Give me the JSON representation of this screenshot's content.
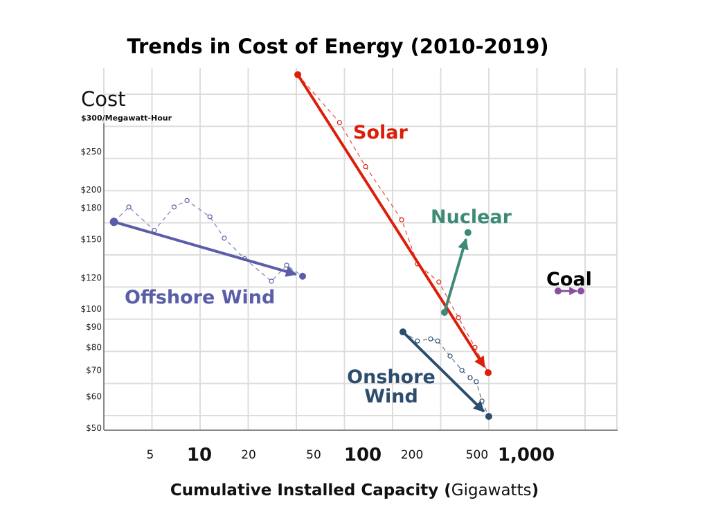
{
  "chart_data": {
    "type": "line",
    "title": "Trends in Cost of Energy (2010-2019)",
    "ylabel": "Cost",
    "ylabel_sub": "$300/Megawatt-Hour",
    "xlabel_bold": "Cumulative Installed Capacity (",
    "xlabel_unit": "Gigawatts",
    "xlabel_close": ")",
    "xscale": "log",
    "yscale": "log",
    "xlim": [
      2.5,
      3500
    ],
    "ylim": [
      49,
      420
    ],
    "grid": true,
    "y_ticks": [
      {
        "value": 250,
        "label": "$250"
      },
      {
        "value": 200,
        "label": "$200"
      },
      {
        "value": 180,
        "label": "$180"
      },
      {
        "value": 150,
        "label": "$150"
      },
      {
        "value": 120,
        "label": "$120"
      },
      {
        "value": 100,
        "label": "$100"
      },
      {
        "value": 90,
        "label": "$90"
      },
      {
        "value": 80,
        "label": "$80"
      },
      {
        "value": 70,
        "label": "$70"
      },
      {
        "value": 60,
        "label": "$60"
      },
      {
        "value": 50,
        "label": "$50"
      }
    ],
    "x_ticks": [
      {
        "value": 5,
        "label": "5",
        "major": false
      },
      {
        "value": 10,
        "label": "10",
        "major": true
      },
      {
        "value": 20,
        "label": "20",
        "major": false
      },
      {
        "value": 50,
        "label": "50",
        "major": false
      },
      {
        "value": 100,
        "label": "100",
        "major": true
      },
      {
        "value": 200,
        "label": "200",
        "major": false
      },
      {
        "value": 500,
        "label": "500",
        "major": false
      },
      {
        "value": 1000,
        "label": "1,000",
        "major": true
      }
    ],
    "series": [
      {
        "name": "Solar",
        "color": "#dc1e0b",
        "trend": {
          "start": [
            40,
            391
          ],
          "end": [
            585,
            69
          ]
        },
        "points": [
          [
            40,
            391
          ],
          [
            72,
            296
          ],
          [
            104,
            229
          ],
          [
            173,
            168
          ],
          [
            216,
            130
          ],
          [
            292,
            117
          ],
          [
            385,
            95
          ],
          [
            486,
            80
          ],
          [
            585,
            69
          ]
        ]
      },
      {
        "name": "Nuclear",
        "color": "#3d8a78",
        "trend": {
          "start": [
            316,
            98
          ],
          "end": [
            440,
            156
          ]
        },
        "points": []
      },
      {
        "name": "Onshore Wind",
        "color": "#2c4d6d",
        "trend": {
          "start": [
            176,
            87.5
          ],
          "end": [
            590,
            53.5
          ]
        },
        "points": [
          [
            176,
            87.5
          ],
          [
            216,
            83
          ],
          [
            260,
            84
          ],
          [
            287,
            83
          ],
          [
            342,
            76
          ],
          [
            404,
            70
          ],
          [
            454,
            67
          ],
          [
            495,
            65.5
          ],
          [
            536,
            58.5
          ],
          [
            590,
            53.5
          ]
        ]
      },
      {
        "name": "Offshore Wind",
        "color": "#5a5ea8",
        "trend": {
          "start": [
            3.0,
            166
          ],
          "end": [
            42.8,
            121
          ]
        },
        "points": [
          [
            3.0,
            166
          ],
          [
            3.7,
            181
          ],
          [
            5.3,
            158
          ],
          [
            7.0,
            181
          ],
          [
            8.4,
            188
          ],
          [
            11.6,
            171
          ],
          [
            14.2,
            151
          ],
          [
            18.9,
            134
          ],
          [
            27.6,
            117.5
          ],
          [
            34.2,
            129
          ],
          [
            42.8,
            121
          ]
        ]
      },
      {
        "name": "Coal",
        "color": "#8a4fa0",
        "trend": {
          "start": [
            1566,
            111
          ],
          "end": [
            2162,
            111
          ]
        },
        "points": []
      }
    ],
    "annotations": {
      "solar": "Solar",
      "nuclear": "Nuclear",
      "coal": "Coal",
      "offshore": "Offshore Wind",
      "onshore_1": "Onshore",
      "onshore_2": "Wind"
    }
  }
}
